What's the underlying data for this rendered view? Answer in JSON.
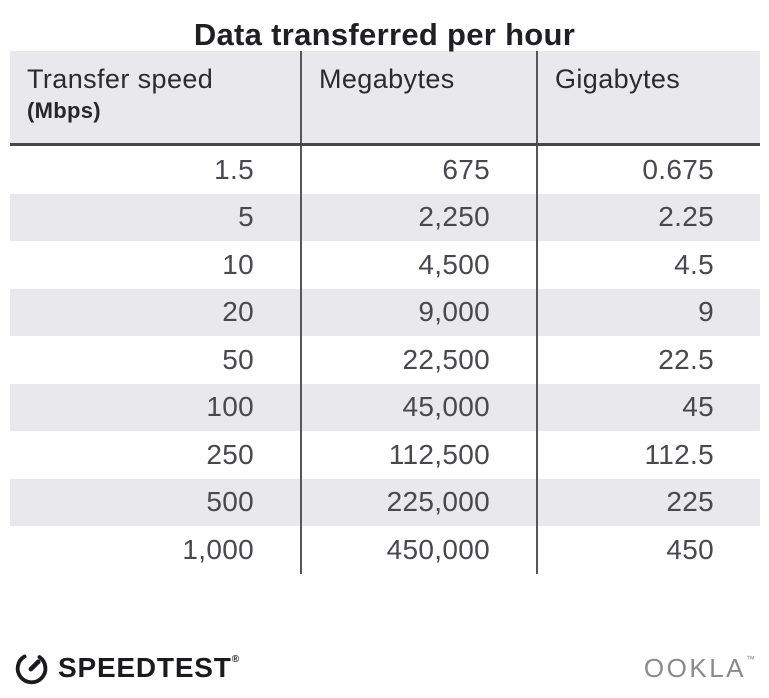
{
  "title": "Data transferred per hour",
  "table": {
    "columns": [
      {
        "label": "Transfer speed",
        "sublabel": "(Mbps)"
      },
      {
        "label": "Megabytes"
      },
      {
        "label": "Gigabytes"
      }
    ],
    "rows": [
      [
        "1.5",
        "675",
        "0.675"
      ],
      [
        "5",
        "2,250",
        "2.25"
      ],
      [
        "10",
        "4,500",
        "4.5"
      ],
      [
        "20",
        "9,000",
        "9"
      ],
      [
        "50",
        "22,500",
        "22.5"
      ],
      [
        "100",
        "45,000",
        "45"
      ],
      [
        "250",
        "112,500",
        "112.5"
      ],
      [
        "500",
        "225,000",
        "225"
      ],
      [
        "1,000",
        "450,000",
        "450"
      ]
    ]
  },
  "footer": {
    "speedtest_label": "SPEEDTEST",
    "speedtest_mark": "®",
    "ookla_label": "OOKLA",
    "ookla_mark": "™"
  },
  "colors": {
    "header_bg": "#e9e8ed",
    "stripe_bg": "#e9e8ed",
    "divider": "#565659",
    "header_underline": "#47474b",
    "title_text": "#202024",
    "number_text": "#48484d",
    "ookla_gray": "#8b8b8e",
    "brand_dark": "#1b1b1e"
  },
  "chart_data": {
    "type": "table",
    "title": "Data transferred per hour",
    "columns": [
      "Transfer speed (Mbps)",
      "Megabytes",
      "Gigabytes"
    ],
    "rows": [
      [
        1.5,
        675,
        0.675
      ],
      [
        5,
        2250,
        2.25
      ],
      [
        10,
        4500,
        4.5
      ],
      [
        20,
        9000,
        9
      ],
      [
        50,
        22500,
        22.5
      ],
      [
        100,
        45000,
        45
      ],
      [
        250,
        112500,
        112.5
      ],
      [
        500,
        225000,
        225
      ],
      [
        1000,
        450000,
        450
      ]
    ]
  }
}
